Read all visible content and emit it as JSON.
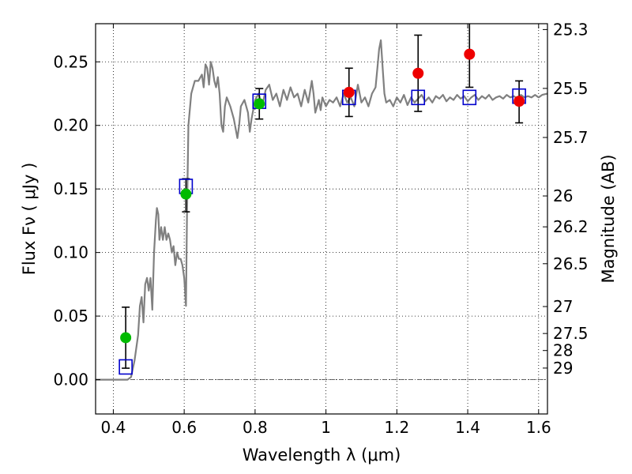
{
  "chart_data": {
    "type": "scatter",
    "title": "",
    "xlabel": "Wavelength  λ (μm)",
    "ylabel": "Flux  Fν  ( μJy )",
    "y2label": "Magnitude (AB)",
    "xlim": [
      0.35,
      1.625
    ],
    "ylim": [
      -0.027,
      0.28
    ],
    "grid": true,
    "colors": {
      "spectrum": "#808080",
      "model_points": "#0000cc",
      "green_points": "#00bb00",
      "red_points": "#ee0000",
      "errorbars": "#000000"
    },
    "x_ticks": [
      {
        "value": 0.4,
        "label": "0.4"
      },
      {
        "value": 0.6,
        "label": "0.6"
      },
      {
        "value": 0.8,
        "label": "0.8"
      },
      {
        "value": 1.0,
        "label": "1"
      },
      {
        "value": 1.2,
        "label": "1.2"
      },
      {
        "value": 1.4,
        "label": "1.4"
      },
      {
        "value": 1.6,
        "label": "1.6"
      }
    ],
    "y_ticks": [
      {
        "value": 0.0,
        "label": "0.00"
      },
      {
        "value": 0.05,
        "label": "0.05"
      },
      {
        "value": 0.1,
        "label": "0.10"
      },
      {
        "value": 0.15,
        "label": "0.15"
      },
      {
        "value": 0.2,
        "label": "0.20"
      },
      {
        "value": 0.25,
        "label": "0.25"
      }
    ],
    "y2_ticks": [
      {
        "flux": 0.2754,
        "label": "25.3"
      },
      {
        "flux": 0.2291,
        "label": "25.5"
      },
      {
        "flux": 0.1905,
        "label": "25.7"
      },
      {
        "flux": 0.1445,
        "label": "26"
      },
      {
        "flux": 0.1202,
        "label": "26.2"
      },
      {
        "flux": 0.0912,
        "label": "26.5"
      },
      {
        "flux": 0.0575,
        "label": "27"
      },
      {
        "flux": 0.0363,
        "label": "27.5"
      },
      {
        "flux": 0.0229,
        "label": "28"
      },
      {
        "flux": 0.0091,
        "label": "29"
      }
    ],
    "series": [
      {
        "kind": "line",
        "points": [
          [
            0.35,
            0.0
          ],
          [
            0.44,
            0.0
          ],
          [
            0.45,
            0.002
          ],
          [
            0.46,
            0.015
          ],
          [
            0.47,
            0.035
          ],
          [
            0.475,
            0.058
          ],
          [
            0.48,
            0.065
          ],
          [
            0.485,
            0.045
          ],
          [
            0.49,
            0.075
          ],
          [
            0.495,
            0.08
          ],
          [
            0.5,
            0.07
          ],
          [
            0.505,
            0.08
          ],
          [
            0.51,
            0.055
          ],
          [
            0.515,
            0.1
          ],
          [
            0.52,
            0.125
          ],
          [
            0.523,
            0.135
          ],
          [
            0.527,
            0.13
          ],
          [
            0.53,
            0.11
          ],
          [
            0.535,
            0.12
          ],
          [
            0.54,
            0.11
          ],
          [
            0.545,
            0.12
          ],
          [
            0.55,
            0.11
          ],
          [
            0.555,
            0.115
          ],
          [
            0.56,
            0.11
          ],
          [
            0.565,
            0.1
          ],
          [
            0.57,
            0.105
          ],
          [
            0.575,
            0.09
          ],
          [
            0.58,
            0.1
          ],
          [
            0.585,
            0.095
          ],
          [
            0.59,
            0.095
          ],
          [
            0.595,
            0.09
          ],
          [
            0.6,
            0.08
          ],
          [
            0.605,
            0.058
          ],
          [
            0.608,
            0.13
          ],
          [
            0.612,
            0.2
          ],
          [
            0.62,
            0.225
          ],
          [
            0.63,
            0.235
          ],
          [
            0.64,
            0.235
          ],
          [
            0.65,
            0.24
          ],
          [
            0.655,
            0.23
          ],
          [
            0.66,
            0.248
          ],
          [
            0.665,
            0.245
          ],
          [
            0.67,
            0.232
          ],
          [
            0.675,
            0.25
          ],
          [
            0.68,
            0.245
          ],
          [
            0.685,
            0.235
          ],
          [
            0.69,
            0.23
          ],
          [
            0.695,
            0.238
          ],
          [
            0.7,
            0.225
          ],
          [
            0.705,
            0.2
          ],
          [
            0.71,
            0.195
          ],
          [
            0.715,
            0.215
          ],
          [
            0.72,
            0.222
          ],
          [
            0.73,
            0.215
          ],
          [
            0.74,
            0.205
          ],
          [
            0.75,
            0.19
          ],
          [
            0.755,
            0.2
          ],
          [
            0.76,
            0.215
          ],
          [
            0.77,
            0.22
          ],
          [
            0.78,
            0.21
          ],
          [
            0.785,
            0.195
          ],
          [
            0.79,
            0.205
          ],
          [
            0.8,
            0.22
          ],
          [
            0.81,
            0.225
          ],
          [
            0.82,
            0.215
          ],
          [
            0.83,
            0.228
          ],
          [
            0.84,
            0.232
          ],
          [
            0.85,
            0.22
          ],
          [
            0.86,
            0.225
          ],
          [
            0.87,
            0.215
          ],
          [
            0.88,
            0.228
          ],
          [
            0.89,
            0.22
          ],
          [
            0.9,
            0.23
          ],
          [
            0.91,
            0.222
          ],
          [
            0.92,
            0.225
          ],
          [
            0.93,
            0.215
          ],
          [
            0.94,
            0.228
          ],
          [
            0.95,
            0.218
          ],
          [
            0.96,
            0.235
          ],
          [
            0.965,
            0.225
          ],
          [
            0.97,
            0.21
          ],
          [
            0.975,
            0.215
          ],
          [
            0.98,
            0.22
          ],
          [
            0.985,
            0.212
          ],
          [
            0.99,
            0.222
          ],
          [
            1.0,
            0.215
          ],
          [
            1.01,
            0.22
          ],
          [
            1.02,
            0.218
          ],
          [
            1.03,
            0.222
          ],
          [
            1.04,
            0.215
          ],
          [
            1.05,
            0.225
          ],
          [
            1.06,
            0.218
          ],
          [
            1.07,
            0.222
          ],
          [
            1.08,
            0.215
          ],
          [
            1.09,
            0.232
          ],
          [
            1.1,
            0.218
          ],
          [
            1.11,
            0.222
          ],
          [
            1.12,
            0.215
          ],
          [
            1.13,
            0.225
          ],
          [
            1.14,
            0.23
          ],
          [
            1.145,
            0.245
          ],
          [
            1.15,
            0.26
          ],
          [
            1.155,
            0.267
          ],
          [
            1.16,
            0.245
          ],
          [
            1.165,
            0.225
          ],
          [
            1.17,
            0.218
          ],
          [
            1.18,
            0.22
          ],
          [
            1.19,
            0.215
          ],
          [
            1.2,
            0.222
          ],
          [
            1.21,
            0.218
          ],
          [
            1.22,
            0.224
          ],
          [
            1.23,
            0.216
          ],
          [
            1.24,
            0.222
          ],
          [
            1.25,
            0.218
          ],
          [
            1.26,
            0.221
          ],
          [
            1.27,
            0.224
          ],
          [
            1.28,
            0.219
          ],
          [
            1.29,
            0.222
          ],
          [
            1.3,
            0.218
          ],
          [
            1.31,
            0.223
          ],
          [
            1.32,
            0.221
          ],
          [
            1.33,
            0.224
          ],
          [
            1.34,
            0.219
          ],
          [
            1.35,
            0.222
          ],
          [
            1.36,
            0.22
          ],
          [
            1.37,
            0.224
          ],
          [
            1.38,
            0.221
          ],
          [
            1.39,
            0.223
          ],
          [
            1.4,
            0.219
          ],
          [
            1.41,
            0.222
          ],
          [
            1.42,
            0.224
          ],
          [
            1.43,
            0.22
          ],
          [
            1.44,
            0.223
          ],
          [
            1.45,
            0.221
          ],
          [
            1.46,
            0.224
          ],
          [
            1.47,
            0.22
          ],
          [
            1.48,
            0.222
          ],
          [
            1.49,
            0.223
          ],
          [
            1.5,
            0.221
          ],
          [
            1.51,
            0.224
          ],
          [
            1.52,
            0.222
          ],
          [
            1.53,
            0.223
          ],
          [
            1.54,
            0.221
          ],
          [
            1.55,
            0.224
          ],
          [
            1.56,
            0.222
          ],
          [
            1.57,
            0.223
          ],
          [
            1.58,
            0.222
          ],
          [
            1.59,
            0.224
          ],
          [
            1.6,
            0.222
          ],
          [
            1.61,
            0.224
          ],
          [
            1.625,
            0.225
          ]
        ]
      },
      {
        "kind": "open-squares",
        "points": [
          [
            0.435,
            0.01
          ],
          [
            0.605,
            0.152
          ],
          [
            0.812,
            0.219
          ],
          [
            1.065,
            0.222
          ],
          [
            1.26,
            0.222
          ],
          [
            1.405,
            0.222
          ],
          [
            1.545,
            0.223
          ]
        ]
      },
      {
        "kind": "filled-circles-green",
        "points": [
          {
            "x": 0.435,
            "y": 0.033,
            "lo": 0.009,
            "hi": 0.057
          },
          {
            "x": 0.605,
            "y": 0.146,
            "lo": 0.132,
            "hi": 0.158
          },
          {
            "x": 0.812,
            "y": 0.217,
            "lo": 0.205,
            "hi": 0.229
          }
        ]
      },
      {
        "kind": "filled-circles-red",
        "points": [
          {
            "x": 1.065,
            "y": 0.226,
            "lo": 0.207,
            "hi": 0.245
          },
          {
            "x": 1.26,
            "y": 0.241,
            "lo": 0.211,
            "hi": 0.271
          },
          {
            "x": 1.405,
            "y": 0.256,
            "lo": 0.23,
            "hi": 0.285
          },
          {
            "x": 1.545,
            "y": 0.219,
            "lo": 0.202,
            "hi": 0.235
          }
        ]
      }
    ]
  }
}
